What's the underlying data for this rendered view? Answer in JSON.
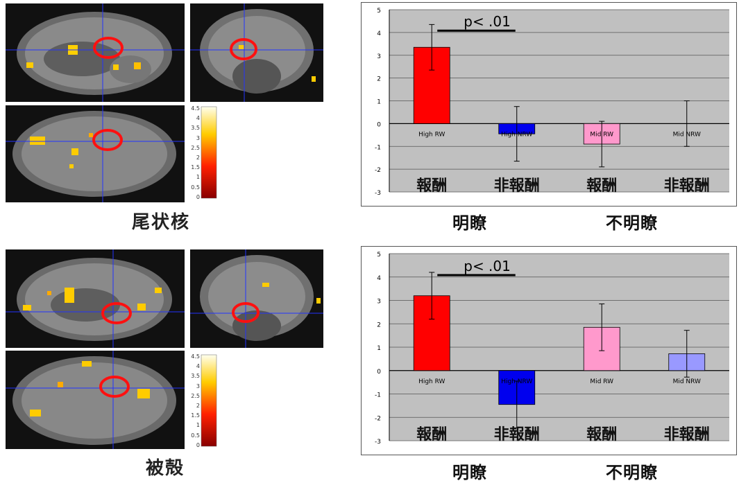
{
  "regions": [
    {
      "name": "尾状核"
    },
    {
      "name": "被殻"
    }
  ],
  "colorbar_ticks": [
    "4.5",
    "4",
    "3.5",
    "3",
    "2.5",
    "2",
    "1.5",
    "1",
    "0.5",
    "0"
  ],
  "condition_labels": [
    "明瞭",
    "不明瞭"
  ],
  "chart_data": [
    {
      "type": "bar",
      "categories": [
        "High RW",
        "High NRW",
        "Mid RW",
        "Mid NRW"
      ],
      "values": [
        3.35,
        -0.45,
        -0.9,
        0.0
      ],
      "errors": [
        1.0,
        1.2,
        1.0,
        1.0
      ],
      "colors": [
        "#ff0000",
        "#0000ee",
        "#ff99cc",
        "#9999ff"
      ],
      "ylim": [
        -3,
        5
      ],
      "yticks": [
        "-3",
        "-2",
        "-1",
        "0",
        "1",
        "2",
        "3",
        "4",
        "5"
      ],
      "category_labels_jp": [
        "報酬",
        "非報酬",
        "報酬",
        "非報酬"
      ],
      "annotation": "p< .01"
    },
    {
      "type": "bar",
      "categories": [
        "High RW",
        "High NRW",
        "Mid RW",
        "Mid NRW"
      ],
      "values": [
        3.2,
        -1.45,
        1.85,
        0.72
      ],
      "errors": [
        1.0,
        1.0,
        1.0,
        1.0
      ],
      "colors": [
        "#ff0000",
        "#0000ee",
        "#ff99cc",
        "#9999ff"
      ],
      "ylim": [
        -3,
        5
      ],
      "yticks": [
        "-3",
        "-2",
        "-1",
        "0",
        "1",
        "2",
        "3",
        "4",
        "5"
      ],
      "category_labels_jp": [
        "報酬",
        "非報酬",
        "報酬",
        "非報酬"
      ],
      "annotation": "p< .01"
    }
  ]
}
